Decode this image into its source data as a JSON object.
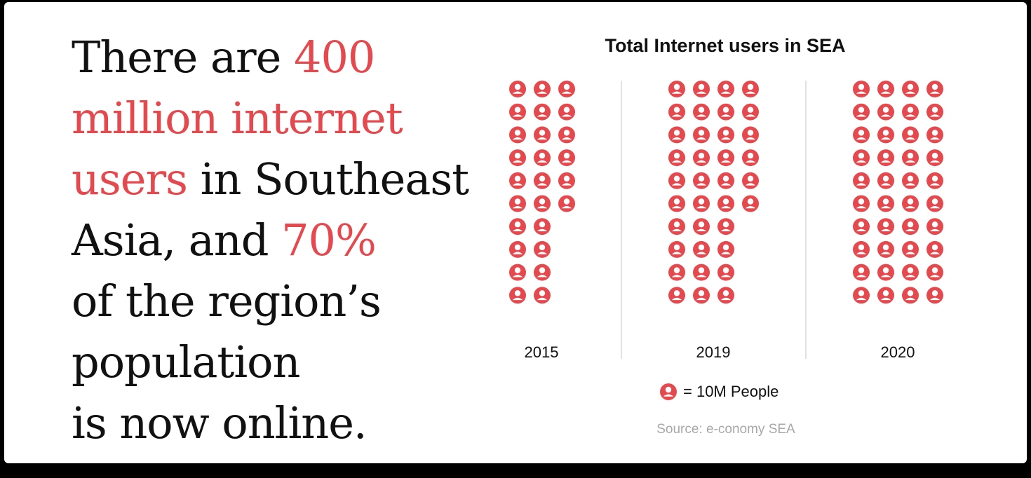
{
  "headline": {
    "lines": [
      [
        {
          "text": "There are ",
          "hl": false
        },
        {
          "text": "400",
          "hl": true
        }
      ],
      [
        {
          "text": "million internet",
          "hl": true
        }
      ],
      [
        {
          "text": "users",
          "hl": true
        },
        {
          "text": " in Southeast",
          "hl": false
        }
      ],
      [
        {
          "text": "Asia, and ",
          "hl": false
        },
        {
          "text": "70%",
          "hl": true
        }
      ],
      [
        {
          "text": "of the region’s",
          "hl": false
        }
      ],
      [
        {
          "text": "population",
          "hl": false
        }
      ],
      [
        {
          "text": "is now online.",
          "hl": false
        }
      ]
    ]
  },
  "colors": {
    "accent": "#e5484d",
    "text": "#111111",
    "muted": "#a8a8a8",
    "divider": "#d9d9d9"
  },
  "chart_data": {
    "type": "pictograph",
    "title": "Total Internet users in SEA",
    "categories": [
      "2015",
      "2019",
      "2020"
    ],
    "values": [
      26,
      36,
      40
    ],
    "unit_value": 10,
    "icon": "person-icon",
    "legend": "= 10M People",
    "source": "Source: e-conomy SEA"
  }
}
